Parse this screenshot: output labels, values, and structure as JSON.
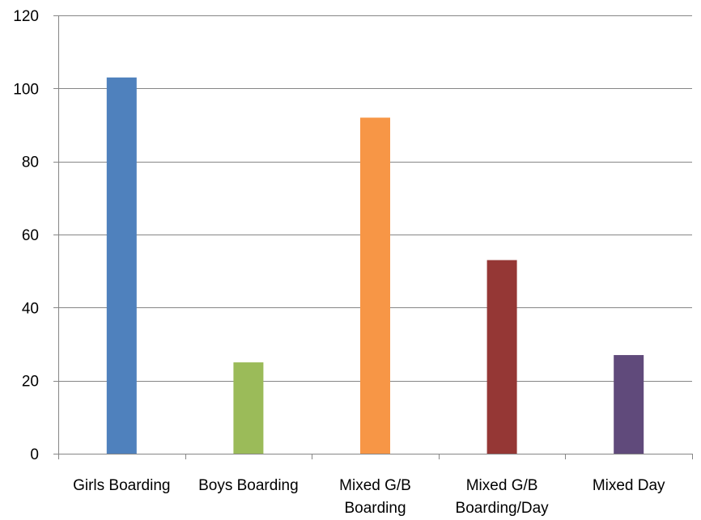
{
  "chart_data": {
    "type": "bar",
    "categories": [
      [
        "Girls Boarding"
      ],
      [
        "Boys Boarding"
      ],
      [
        "Mixed G/B",
        "Boarding"
      ],
      [
        "Mixed G/B",
        "Boarding/Day"
      ],
      [
        "Mixed Day"
      ]
    ],
    "values": [
      103,
      25,
      92,
      53,
      27
    ],
    "colors": [
      "#4F81BD",
      "#9BBB59",
      "#F79646",
      "#953735",
      "#604A7B"
    ],
    "ylim": [
      0,
      120
    ],
    "yticks": [
      "0",
      "20",
      "40",
      "60",
      "80",
      "100",
      "120"
    ],
    "grid": true,
    "legend": "none"
  }
}
